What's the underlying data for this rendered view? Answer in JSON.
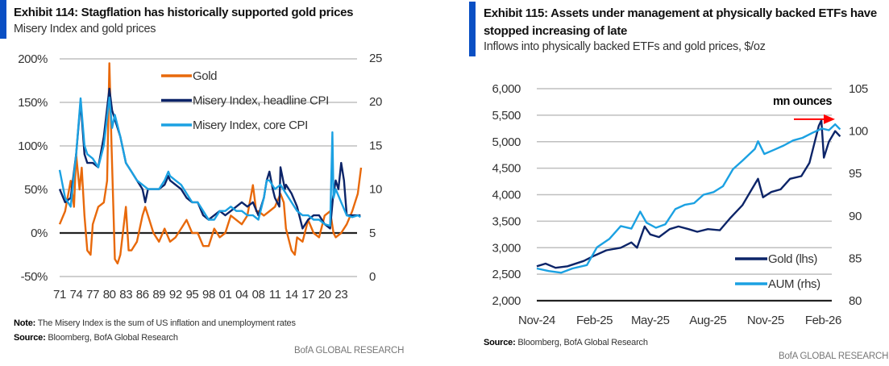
{
  "colors": {
    "accent": "#0a4fc4",
    "gold_orange": "#e8690b",
    "navy": "#0c2468",
    "light_blue": "#1ba1e2",
    "arrow_red": "#ff0000",
    "grid": "#bfbfbf"
  },
  "left": {
    "title": "Exhibit 114: Stagflation has historically supported gold prices",
    "subtitle": "Misery Index and gold prices",
    "note_label": "Note:",
    "note_text": " The Misery Index is the sum of US inflation and unemployment rates",
    "source_label": "Source:",
    "source_text": " Bloomberg, BofA Global Research",
    "brand": "BofA GLOBAL RESEARCH"
  },
  "right": {
    "title_line1": "Exhibit 115: Assets under management at physically backed ETFs have",
    "title_line2": "stopped increasing of late",
    "subtitle": "Inflows into physically backed ETFs and gold prices, $/oz",
    "source_label": "Source:",
    "source_text": " Bloomberg, BofA Global Research",
    "brand": "BofA GLOBAL RESEARCH"
  },
  "chart_data": [
    {
      "type": "line",
      "grid": true,
      "legend_placement": "top-center",
      "x_tick_labels": [
        "71",
        "74",
        "77",
        "80",
        "83",
        "86",
        "89",
        "92",
        "95",
        "98",
        "01",
        "04",
        "08",
        "11",
        "14",
        "17",
        "20",
        "23"
      ],
      "x_tick_years": [
        1971,
        1974,
        1977,
        1980,
        1983,
        1986,
        1989,
        1992,
        1995,
        1998,
        2001,
        2004,
        2007,
        2010,
        2013,
        2016,
        2019,
        2022
      ],
      "y_left": {
        "ticks": [
          "200%",
          "150%",
          "100%",
          "50%",
          "0%",
          "-50%"
        ],
        "values": [
          200,
          150,
          100,
          50,
          0,
          -50
        ],
        "range": [
          -50,
          200
        ]
      },
      "y_right": {
        "ticks": [
          "25",
          "20",
          "15",
          "10",
          "5",
          "0"
        ],
        "values": [
          25,
          20,
          15,
          10,
          5,
          0
        ],
        "range": [
          0,
          25
        ]
      },
      "series": [
        {
          "name": "Gold",
          "axis": "left",
          "color": "#e8690b",
          "x": [
            1971,
            1972,
            1973,
            1973.6,
            1974,
            1974.6,
            1975,
            1975.5,
            1976,
            1976.6,
            1977,
            1978,
            1979,
            1979.6,
            1980,
            1980.4,
            1981,
            1981.5,
            1982,
            1983,
            1983.5,
            1984,
            1985,
            1986,
            1986.5,
            1987,
            1988,
            1989,
            1990,
            1991,
            1992,
            1993,
            1994,
            1995,
            1996,
            1997,
            1998,
            1999,
            2000,
            2001,
            2002,
            2003,
            2004,
            2005,
            2006,
            2006.6,
            2007,
            2008,
            2009,
            2010,
            2011,
            2011.6,
            2012,
            2013,
            2013.6,
            2014,
            2015,
            2016,
            2017,
            2018,
            2019,
            2020,
            2020.6,
            2021,
            2022,
            2023,
            2024,
            2025,
            2025.6
          ],
          "values": [
            10,
            25,
            60,
            30,
            90,
            50,
            75,
            20,
            -20,
            -25,
            10,
            30,
            35,
            60,
            195,
            100,
            -30,
            -35,
            -25,
            30,
            -20,
            -20,
            -10,
            20,
            30,
            20,
            0,
            -10,
            5,
            -10,
            -5,
            5,
            15,
            0,
            0,
            -15,
            -15,
            5,
            -5,
            0,
            20,
            15,
            10,
            20,
            55,
            25,
            25,
            20,
            25,
            30,
            45,
            35,
            5,
            -20,
            -25,
            -5,
            -10,
            15,
            0,
            -5,
            20,
            25,
            0,
            -5,
            0,
            10,
            25,
            45,
            75
          ]
        },
        {
          "name": "Misery Index, headline CPI",
          "axis": "right",
          "color": "#0c2468",
          "x": [
            1971,
            1972,
            1973,
            1974,
            1974.8,
            1975.5,
            1976,
            1977,
            1978,
            1979,
            1980,
            1980.5,
            1981,
            1982,
            1983,
            1984,
            1985,
            1986,
            1986.5,
            1987,
            1988,
            1989,
            1990,
            1990.7,
            1991,
            1992,
            1993,
            1994,
            1995,
            1996,
            1997,
            1998,
            1999,
            2000,
            2001,
            2002,
            2003,
            2004,
            2005,
            2006,
            2007,
            2008,
            2008.5,
            2009,
            2009.6,
            2010,
            2010.8,
            2011,
            2011.8,
            2012,
            2013,
            2014,
            2015,
            2016,
            2017,
            2018,
            2019,
            2020,
            2020.5,
            2021,
            2021.5,
            2022,
            2022.5,
            2023,
            2024,
            2025,
            2025.5
          ],
          "values": [
            10,
            8.5,
            9,
            14,
            20,
            14,
            13,
            13,
            12.5,
            16,
            21.5,
            19,
            18,
            16,
            13,
            12,
            11,
            10,
            8.5,
            10,
            10,
            10,
            10.5,
            11.5,
            11,
            10.5,
            10,
            9,
            8.5,
            8.5,
            7,
            6.5,
            7,
            7.5,
            7,
            7.5,
            8,
            8.5,
            8,
            8.5,
            7,
            9,
            11,
            12,
            10,
            9,
            8,
            12.5,
            10,
            10.5,
            9.5,
            8,
            5.5,
            6.5,
            7,
            7,
            6,
            5.5,
            9,
            11,
            10,
            13,
            11,
            7,
            7,
            7,
            7
          ]
        },
        {
          "name": "Misery Index, core CPI",
          "axis": "right",
          "color": "#1ba1e2",
          "x": [
            1971,
            1972,
            1973,
            1974,
            1974.8,
            1975.5,
            1976,
            1977,
            1978,
            1979,
            1980,
            1980.5,
            1981,
            1982,
            1983,
            1984,
            1985,
            1986,
            1987,
            1988,
            1989,
            1990,
            1990.7,
            1991,
            1992,
            1993,
            1994,
            1995,
            1996,
            1997,
            1998,
            1999,
            2000,
            2001,
            2002,
            2003,
            2004,
            2005,
            2006,
            2007,
            2008,
            2008.5,
            2009,
            2010,
            2011,
            2012,
            2013,
            2014,
            2015,
            2016,
            2017,
            2018,
            2019,
            2020,
            2020.4,
            2020.6,
            2021,
            2022,
            2023,
            2024,
            2025,
            2025.5
          ],
          "values": [
            12.2,
            9,
            8,
            14,
            20.4,
            15,
            14,
            13.5,
            12.5,
            15,
            20.5,
            17,
            18.5,
            16,
            13,
            12,
            11,
            10.5,
            10,
            10,
            10,
            11,
            12,
            11.5,
            11,
            10.5,
            9.5,
            8.5,
            8.5,
            7.5,
            6.5,
            6.5,
            7.5,
            7.5,
            8,
            7.5,
            7.5,
            7,
            7,
            6.5,
            9,
            11,
            11,
            10,
            10.5,
            9.5,
            8.5,
            7.5,
            7,
            7,
            6.5,
            6.5,
            6,
            5.8,
            16.5,
            9,
            10,
            8.5,
            7,
            6.8,
            7,
            6.8
          ]
        }
      ]
    },
    {
      "type": "line",
      "grid": true,
      "legend_placement": "bottom-right",
      "x_tick_labels": [
        "Nov-24",
        "Feb-25",
        "May-25",
        "Aug-25",
        "Nov-25",
        "Feb-26"
      ],
      "x_tick_dates": [
        "2024-11-01",
        "2025-02-01",
        "2025-05-01",
        "2025-08-01",
        "2025-11-01",
        "2026-02-01"
      ],
      "y_left": {
        "ticks": [
          "6,000",
          "5,500",
          "5,000",
          "4,500",
          "4,000",
          "3,500",
          "3,000",
          "2,500",
          "2,000"
        ],
        "values": [
          6000,
          5500,
          5000,
          4500,
          4000,
          3500,
          3000,
          2500,
          2000
        ],
        "range": [
          2000,
          6000
        ]
      },
      "y_right": {
        "ticks": [
          "105",
          "100",
          "95",
          "90",
          "85",
          "80"
        ],
        "values": [
          105,
          100,
          95,
          90,
          85,
          80
        ],
        "range": [
          80,
          105
        ],
        "unit_label": "mn ounces"
      },
      "annotation": {
        "type": "arrow",
        "color": "#ff0000",
        "direction": "right",
        "level_rhs": 101.4
      },
      "series": [
        {
          "name": "Gold (lhs)",
          "axis": "left",
          "color": "#0c2468",
          "x": [
            "2024-11-01",
            "2024-11-15",
            "2024-12-01",
            "2024-12-20",
            "2025-01-15",
            "2025-02-01",
            "2025-02-20",
            "2025-03-15",
            "2025-04-01",
            "2025-04-10",
            "2025-04-22",
            "2025-05-01",
            "2025-05-15",
            "2025-06-01",
            "2025-06-15",
            "2025-07-01",
            "2025-07-15",
            "2025-08-01",
            "2025-08-20",
            "2025-09-05",
            "2025-09-25",
            "2025-10-10",
            "2025-10-20",
            "2025-10-28",
            "2025-11-10",
            "2025-11-25",
            "2025-12-10",
            "2025-12-28",
            "2026-01-10",
            "2026-01-25",
            "2026-01-29",
            "2026-02-02",
            "2026-02-10",
            "2026-02-20",
            "2026-02-28"
          ],
          "values": [
            2650,
            2700,
            2620,
            2650,
            2750,
            2850,
            2950,
            3000,
            3100,
            3000,
            3400,
            3250,
            3200,
            3350,
            3400,
            3350,
            3300,
            3350,
            3330,
            3550,
            3800,
            4100,
            4300,
            3950,
            4050,
            4100,
            4300,
            4350,
            4600,
            5300,
            5400,
            4700,
            5000,
            5200,
            5100
          ]
        },
        {
          "name": "AUM (rhs)",
          "axis": "right",
          "color": "#1ba1e2",
          "x": [
            "2024-11-01",
            "2024-11-20",
            "2024-12-10",
            "2024-12-28",
            "2025-01-20",
            "2025-02-05",
            "2025-02-25",
            "2025-03-15",
            "2025-04-01",
            "2025-04-15",
            "2025-04-25",
            "2025-05-10",
            "2025-05-25",
            "2025-06-10",
            "2025-06-25",
            "2025-07-10",
            "2025-07-25",
            "2025-08-10",
            "2025-08-25",
            "2025-09-10",
            "2025-09-25",
            "2025-10-15",
            "2025-10-20",
            "2025-10-30",
            "2025-11-15",
            "2025-11-30",
            "2025-12-15",
            "2025-12-30",
            "2026-01-15",
            "2026-01-30",
            "2026-02-10",
            "2026-02-20",
            "2026-02-28"
          ],
          "values": [
            83.8,
            83.5,
            83.3,
            83.8,
            84.2,
            86.3,
            87.3,
            88.8,
            88.5,
            90.5,
            89.2,
            88.6,
            89,
            90.8,
            91.3,
            91.5,
            92.5,
            92.8,
            93.5,
            95.5,
            96.5,
            97.9,
            98.8,
            97.3,
            97.8,
            98.3,
            98.9,
            99.2,
            99.8,
            100.3,
            100.1,
            100.8,
            100.2
          ]
        }
      ]
    }
  ]
}
